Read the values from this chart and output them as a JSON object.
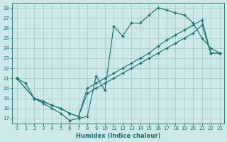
{
  "xlabel": "Humidex (Indice chaleur)",
  "bg_color": "#cce8e8",
  "grid_color": "#aacccc",
  "line_color": "#1a7070",
  "xlim": [
    -0.5,
    23.5
  ],
  "ylim": [
    16.5,
    28.5
  ],
  "xticks": [
    0,
    1,
    2,
    3,
    4,
    5,
    6,
    7,
    8,
    9,
    10,
    11,
    12,
    13,
    14,
    15,
    16,
    17,
    18,
    19,
    20,
    21,
    22,
    23
  ],
  "yticks": [
    17,
    18,
    19,
    20,
    21,
    22,
    23,
    24,
    25,
    26,
    27,
    28
  ],
  "line1_x": [
    0,
    1,
    2,
    3,
    4,
    5,
    6,
    7,
    8,
    9,
    10,
    11,
    12,
    13,
    14,
    15,
    16,
    17,
    18,
    19,
    20,
    21,
    22,
    23
  ],
  "line1_y": [
    21.0,
    20.5,
    19.0,
    18.5,
    18.0,
    17.5,
    16.8,
    17.0,
    17.2,
    21.2,
    19.8,
    26.2,
    25.2,
    26.5,
    26.5,
    27.3,
    28.0,
    27.8,
    27.5,
    27.3,
    26.5,
    25.0,
    24.0,
    23.5
  ],
  "line2_x": [
    0,
    2,
    3,
    4,
    5,
    6,
    7,
    8,
    9,
    10,
    11,
    12,
    13,
    14,
    15,
    16,
    17,
    18,
    19,
    20,
    21,
    22,
    23
  ],
  "line2_y": [
    21.0,
    19.0,
    18.7,
    18.3,
    18.0,
    17.5,
    17.2,
    20.0,
    20.5,
    21.0,
    21.5,
    22.0,
    22.5,
    23.0,
    23.5,
    24.2,
    24.8,
    25.3,
    25.8,
    26.3,
    26.8,
    23.5,
    23.5
  ],
  "line3_x": [
    0,
    2,
    3,
    4,
    5,
    6,
    7,
    8,
    9,
    10,
    11,
    12,
    13,
    14,
    15,
    16,
    17,
    18,
    19,
    20,
    21,
    22,
    23
  ],
  "line3_y": [
    21.0,
    19.0,
    18.7,
    18.3,
    18.0,
    17.5,
    17.2,
    19.5,
    20.0,
    20.5,
    21.0,
    21.5,
    22.0,
    22.5,
    23.0,
    23.5,
    24.0,
    24.5,
    25.0,
    25.5,
    26.3,
    23.5,
    23.5
  ],
  "xlabel_fontsize": 6,
  "tick_fontsize": 5
}
